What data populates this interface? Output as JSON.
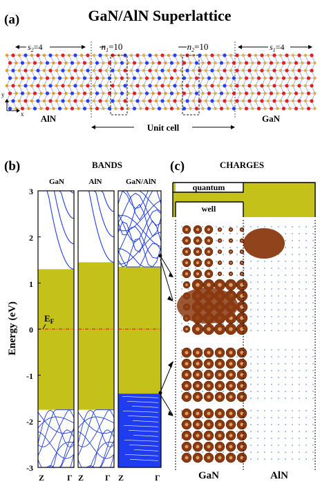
{
  "title": "GaN/AlN  Superlattice",
  "panel_a": {
    "label": "(a)",
    "s2": "s",
    "s2_sub": "2",
    "s2_val": "=4",
    "n1": "n",
    "n1_sub": "1",
    "n1_val": "=10",
    "n2": "n",
    "n2_sub": "2",
    "n2_val": "=10",
    "s1": "s",
    "s1_sub": "1",
    "s1_val": "=4",
    "left_material": "AlN",
    "right_material": "GaN",
    "unit_cell": "Unit cell",
    "axis_y": "y",
    "axis_x": "x"
  },
  "panel_b": {
    "label": "(b)",
    "heading": "BANDS",
    "ylabel": "Energy (eV)",
    "fermi": "E",
    "fermi_sub": "F",
    "columns": [
      "GaN",
      "AlN",
      "GaN/AlN"
    ],
    "xticks": [
      "Z",
      "Γ"
    ],
    "yticks": [
      "3",
      "2",
      "1",
      "0",
      "-1",
      "-2",
      "-3"
    ]
  },
  "panel_c": {
    "label": "(c)",
    "heading": "CHARGES",
    "quantum": "quantum",
    "well": "well",
    "bottom_left": "GaN",
    "bottom_right": "AlN"
  },
  "chart_data": {
    "type": "line",
    "ylabel": "Energy (eV)",
    "ylim": [
      -3,
      3
    ],
    "fermi_level": 0,
    "panels": [
      {
        "name": "GaN",
        "gap": [
          -1.75,
          1.3
        ]
      },
      {
        "name": "AlN",
        "gap": [
          -1.75,
          1.45
        ]
      },
      {
        "name": "GaN/AlN",
        "gap": [
          -1.4,
          1.35
        ]
      }
    ]
  },
  "colors": {
    "gap_fill": "#c3c11a",
    "band_line": "#1f3cf0",
    "fermi": "#e8231c",
    "charge": "#8b3a10",
    "atom_red": "#e0201a",
    "atom_blue": "#2a3fe8",
    "atom_orange": "#e59b1b"
  }
}
